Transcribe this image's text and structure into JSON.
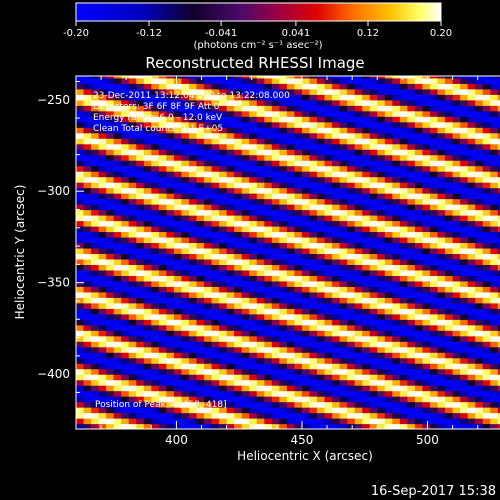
{
  "chart_data": {
    "type": "heatmap",
    "title": "Reconstructed RHESSI Image",
    "xlabel": "Heliocentric X (arcsec)",
    "ylabel": "Heliocentric Y (arcsec)",
    "xlim": [
      360,
      548
    ],
    "ylim": [
      -430,
      -237
    ],
    "x_ticks": [
      400,
      450,
      500
    ],
    "y_ticks": [
      -250,
      -300,
      -350,
      -400
    ],
    "colorbar": {
      "min": -0.2,
      "max": 0.2,
      "tick_values": [
        -0.2,
        -0.12,
        -0.041,
        0.041,
        0.12,
        0.2
      ],
      "tick_labels": [
        "-0.20",
        "-0.12",
        "-0.041",
        "0.041",
        "0.12",
        "0.20"
      ],
      "unit_label": "(photons cm⁻² s⁻¹ asec⁻²)"
    },
    "pattern": {
      "description": "diagonal stripes",
      "stripe_period_arcsec": 20,
      "stripe_angle_deg": 68,
      "amplitude": 0.2
    },
    "annotations": [
      "23-Dec-2011 13:12:04.000 to 13:22:08.000",
      "Detectors: 3F 6F 8F 9F Att 0",
      "Energy range: 6.0 - 12.0 keV",
      "Clean     Total counts: 1.1 E+05"
    ],
    "peak_label": "Position of Peak = [458,-418]",
    "peak": [
      458,
      -418
    ]
  },
  "footer": {
    "timestamp": "16-Sep-2017 15:38"
  },
  "colors": {
    "background": "#000000",
    "foreground": "#ffffff"
  }
}
